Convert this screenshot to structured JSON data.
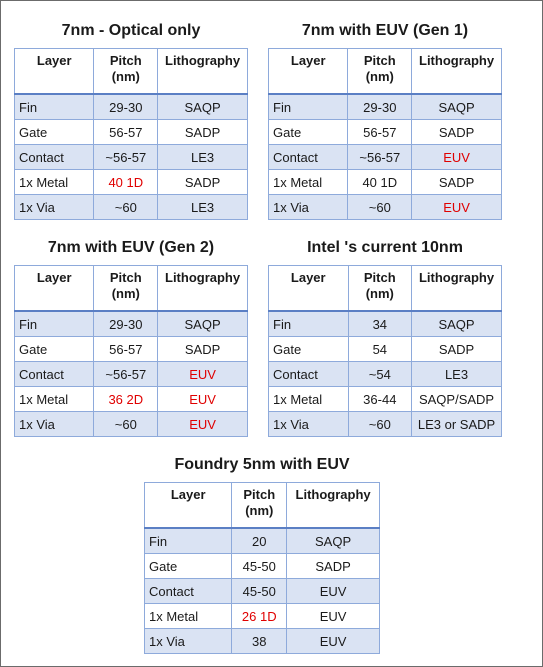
{
  "header": {
    "layer": "Layer",
    "pitch": "Pitch\n(nm)",
    "lithography": "Lithography"
  },
  "colors": {
    "row_alt": "#dae3f3",
    "border": "#8eaadb",
    "highlight": "#e00000"
  },
  "tables": [
    {
      "title": "7nm - Optical only",
      "rows": [
        {
          "layer": "Fin",
          "pitch": "29-30",
          "litho": "SAQP",
          "pitch_red": false,
          "litho_red": false
        },
        {
          "layer": "Gate",
          "pitch": "56-57",
          "litho": "SADP",
          "pitch_red": false,
          "litho_red": false
        },
        {
          "layer": "Contact",
          "pitch": "~56-57",
          "litho": "LE3",
          "pitch_red": false,
          "litho_red": false
        },
        {
          "layer": "1x Metal",
          "pitch": "40 1D",
          "litho": "SADP",
          "pitch_red": true,
          "litho_red": false
        },
        {
          "layer": "1x Via",
          "pitch": "~60",
          "litho": "LE3",
          "pitch_red": false,
          "litho_red": false
        }
      ]
    },
    {
      "title": "7nm with EUV (Gen 1)",
      "rows": [
        {
          "layer": "Fin",
          "pitch": "29-30",
          "litho": "SAQP",
          "pitch_red": false,
          "litho_red": false
        },
        {
          "layer": "Gate",
          "pitch": "56-57",
          "litho": "SADP",
          "pitch_red": false,
          "litho_red": false
        },
        {
          "layer": "Contact",
          "pitch": "~56-57",
          "litho": "EUV",
          "pitch_red": false,
          "litho_red": true
        },
        {
          "layer": "1x Metal",
          "pitch": "40 1D",
          "litho": "SADP",
          "pitch_red": false,
          "litho_red": false
        },
        {
          "layer": "1x Via",
          "pitch": "~60",
          "litho": "EUV",
          "pitch_red": false,
          "litho_red": true
        }
      ]
    },
    {
      "title": "7nm with EUV (Gen 2)",
      "rows": [
        {
          "layer": "Fin",
          "pitch": "29-30",
          "litho": "SAQP",
          "pitch_red": false,
          "litho_red": false
        },
        {
          "layer": "Gate",
          "pitch": "56-57",
          "litho": "SADP",
          "pitch_red": false,
          "litho_red": false
        },
        {
          "layer": "Contact",
          "pitch": "~56-57",
          "litho": "EUV",
          "pitch_red": false,
          "litho_red": true
        },
        {
          "layer": "1x Metal",
          "pitch": "36 2D",
          "litho": "EUV",
          "pitch_red": true,
          "litho_red": true
        },
        {
          "layer": "1x Via",
          "pitch": "~60",
          "litho": "EUV",
          "pitch_red": false,
          "litho_red": true
        }
      ]
    },
    {
      "title": "Intel 's current 10nm",
      "rows": [
        {
          "layer": "Fin",
          "pitch": "34",
          "litho": "SAQP",
          "pitch_red": false,
          "litho_red": false
        },
        {
          "layer": "Gate",
          "pitch": "54",
          "litho": "SADP",
          "pitch_red": false,
          "litho_red": false
        },
        {
          "layer": "Contact",
          "pitch": "~54",
          "litho": "LE3",
          "pitch_red": false,
          "litho_red": false
        },
        {
          "layer": "1x Metal",
          "pitch": "36-44",
          "litho": "SAQP/SADP",
          "pitch_red": false,
          "litho_red": false
        },
        {
          "layer": "1x Via",
          "pitch": "~60",
          "litho": "LE3 or SADP",
          "pitch_red": false,
          "litho_red": false
        }
      ]
    },
    {
      "title": "Foundry 5nm with EUV",
      "rows": [
        {
          "layer": "Fin",
          "pitch": "20",
          "litho": "SAQP",
          "pitch_red": false,
          "litho_red": false
        },
        {
          "layer": "Gate",
          "pitch": "45-50",
          "litho": "SADP",
          "pitch_red": false,
          "litho_red": false
        },
        {
          "layer": "Contact",
          "pitch": "45-50",
          "litho": "EUV",
          "pitch_red": false,
          "litho_red": false
        },
        {
          "layer": "1x Metal",
          "pitch": "26 1D",
          "litho": "EUV",
          "pitch_red": true,
          "litho_red": false
        },
        {
          "layer": "1x Via",
          "pitch": "38",
          "litho": "EUV",
          "pitch_red": false,
          "litho_red": false
        }
      ]
    }
  ]
}
